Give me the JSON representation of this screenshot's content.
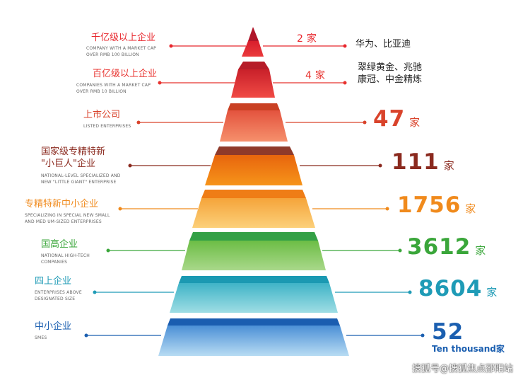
{
  "tiers": [
    {
      "zh": "千亿级以上企业",
      "en": [
        "COMPANY WITH A MARKET CAP",
        "OVER RMB 100 BILLION"
      ],
      "count": "2",
      "unit": "家",
      "companies": [
        "华为、比亚迪"
      ],
      "color": "#e8272d"
    },
    {
      "zh": "百亿级以上企业",
      "en": [
        "COMPANIES WITH A MARKET CAP",
        "OVER RMB 10 BILLION"
      ],
      "count": "4",
      "unit": "家",
      "companies": [
        "翠绿黄金、兆驰",
        "康冠、中金精炼"
      ],
      "color": "#e8332f"
    },
    {
      "zh": "上市公司",
      "en": [
        "LISTED  ENTERPRISES"
      ],
      "count": "47",
      "unit": "家",
      "color": "#d9432b"
    },
    {
      "zh": "国家级专精特新\n\"小巨人\"企业",
      "en": [
        "NATIONAL-LEVEL SPECIALIZED AND",
        "NEW \"LITTLE GIANT\" ENTERPRISE"
      ],
      "count": "111",
      "unit": "家",
      "color": "#8b2a1f"
    },
    {
      "zh": "专精特新中小企业",
      "en": [
        "SPECIALIZING IN SPECIAL NEW SMALL",
        "AND MED UM-SIZED ENTERPRISES"
      ],
      "count": "1756",
      "unit": "家",
      "color": "#f08a1c"
    },
    {
      "zh": "国高企业",
      "en": [
        "NATIONAL HIGH-TECH",
        "COMPANIES"
      ],
      "count": "3612",
      "unit": "家",
      "color": "#3aa63a"
    },
    {
      "zh": "四上企业",
      "en": [
        "ENTERPRISES ABOVE",
        "DESIGNATED SIZE"
      ],
      "count": "8604",
      "unit": "家",
      "color": "#1f9bb6"
    },
    {
      "zh": "中小企业",
      "en": [
        "SMES"
      ],
      "count": "52",
      "unit": "Ten thousand家",
      "color": "#1b5fb0"
    }
  ],
  "watermark": "搜狐号@搜狐焦点邵阳站"
}
